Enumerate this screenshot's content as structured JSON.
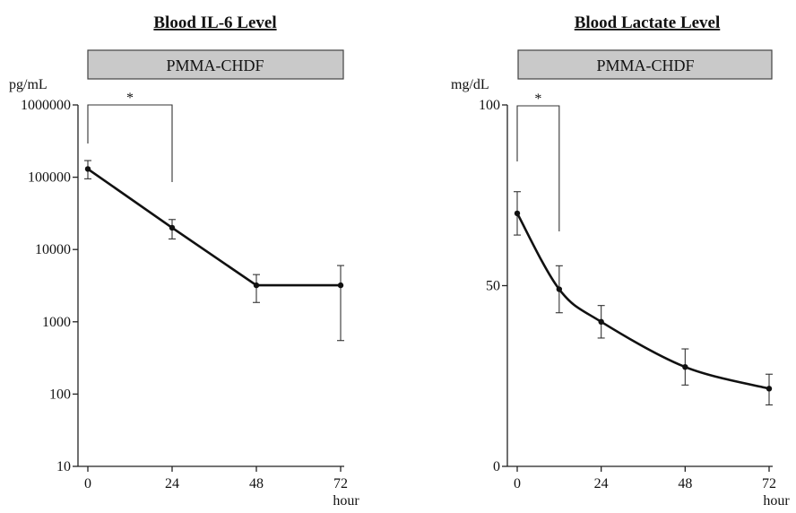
{
  "chart_data": [
    {
      "type": "line",
      "title": "Blood IL-6 Level",
      "band_label": "PMMA-CHDF",
      "y_unit": "pg/mL",
      "x_unit": "hour",
      "yscale": "log",
      "ylim": [
        10,
        1000000
      ],
      "y_ticks": [
        10,
        100,
        1000,
        10000,
        100000,
        1000000
      ],
      "y_tick_labels": [
        "10",
        "100",
        "1000",
        "10000",
        "100000",
        "1000000"
      ],
      "xlim": [
        0,
        72
      ],
      "x_ticks": [
        0,
        24,
        48,
        72
      ],
      "x_tick_labels": [
        "0",
        "24",
        "48",
        "72"
      ],
      "x": [
        0,
        24,
        48,
        72
      ],
      "values": [
        130000,
        20000,
        3200,
        3200
      ],
      "err_low": [
        95000,
        14000,
        1850,
        550
      ],
      "err_high": [
        170000,
        26000,
        4500,
        6000
      ],
      "significance": {
        "from": 0,
        "to": 24,
        "label": "*"
      }
    },
    {
      "type": "line",
      "title": "Blood Lactate Level",
      "band_label": "PMMA-CHDF",
      "y_unit": "mg/dL",
      "x_unit": "hour",
      "yscale": "linear",
      "ylim": [
        0,
        100
      ],
      "y_ticks": [
        0,
        50,
        100
      ],
      "y_tick_labels": [
        "0",
        "50",
        "100"
      ],
      "xlim": [
        0,
        72
      ],
      "x_ticks": [
        0,
        24,
        48,
        72
      ],
      "x_tick_labels": [
        "0",
        "24",
        "48",
        "72"
      ],
      "x": [
        0,
        12,
        24,
        48,
        72
      ],
      "values": [
        70,
        49,
        40,
        27.5,
        21.5
      ],
      "err_low": [
        64,
        42.5,
        35.5,
        22.5,
        17
      ],
      "err_high": [
        76,
        55.5,
        44.5,
        32.5,
        25.5
      ],
      "significance": {
        "from": 0,
        "to": 12,
        "label": "*"
      }
    }
  ]
}
